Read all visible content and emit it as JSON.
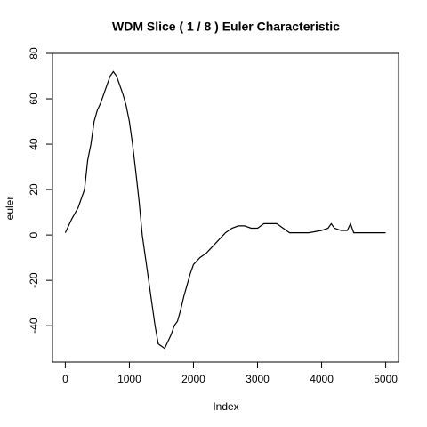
{
  "chart_data": {
    "type": "line",
    "title": "WDM Slice ( 1 / 8 ) Euler Characteristic",
    "xlabel": "Index",
    "ylabel": "euler",
    "color": "#000000",
    "x": [
      0,
      100,
      200,
      300,
      350,
      400,
      450,
      500,
      550,
      600,
      650,
      700,
      750,
      800,
      850,
      900,
      950,
      1000,
      1050,
      1100,
      1150,
      1200,
      1250,
      1300,
      1350,
      1400,
      1450,
      1500,
      1550,
      1600,
      1650,
      1700,
      1750,
      1800,
      1850,
      1900,
      1950,
      2000,
      2100,
      2200,
      2300,
      2400,
      2500,
      2600,
      2700,
      2800,
      2900,
      3000,
      3100,
      3200,
      3300,
      3400,
      3500,
      3600,
      3800,
      4000,
      4100,
      4150,
      4200,
      4300,
      4400,
      4450,
      4500,
      5000
    ],
    "values": [
      1,
      7,
      12,
      20,
      33,
      40,
      50,
      55,
      58,
      62,
      66,
      70,
      72,
      70,
      66,
      62,
      57,
      50,
      40,
      28,
      15,
      0,
      -10,
      -20,
      -30,
      -40,
      -48,
      -49,
      -50,
      -47,
      -44,
      -40,
      -38,
      -33,
      -27,
      -22,
      -17,
      -13,
      -10,
      -8,
      -5,
      -2,
      1,
      3,
      4,
      4,
      3,
      3,
      5,
      5,
      5,
      3,
      1,
      1,
      1,
      2,
      3,
      5,
      3,
      2,
      2,
      5,
      1,
      1
    ],
    "xlim": [
      -200,
      5200
    ],
    "ylim": [
      -56,
      80
    ],
    "xticks": [
      0,
      1000,
      2000,
      3000,
      4000,
      5000
    ],
    "yticks": [
      -40,
      -20,
      0,
      20,
      40,
      60,
      80
    ]
  }
}
